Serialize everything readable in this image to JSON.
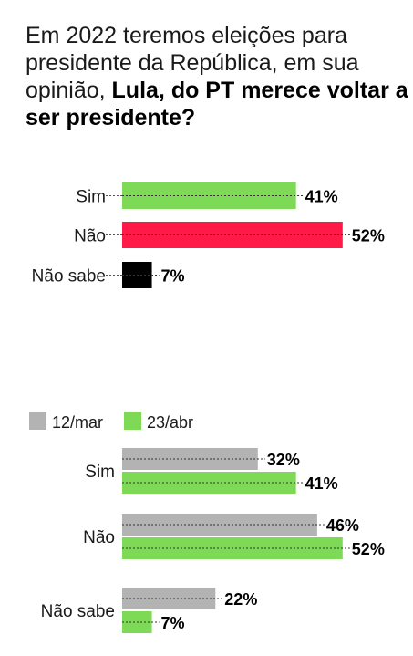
{
  "title": {
    "normal": "Em 2022 teremos eleições para presidente da República, em sua opinião, ",
    "bold": "Lula, do PT merece voltar a ser presidente?"
  },
  "colors": {
    "green": "#7ed957",
    "red": "#ff1a47",
    "black": "#000000",
    "gray": "#b3b3b3"
  },
  "chart_data": [
    {
      "type": "bar",
      "orientation": "horizontal",
      "categories": [
        "Sim",
        "Não",
        "Não sabe"
      ],
      "values": [
        41,
        52,
        7
      ],
      "value_labels": [
        "41%",
        "52%",
        "7%"
      ],
      "bar_colors": [
        "#7ed957",
        "#ff1a47",
        "#000000"
      ],
      "xlim": [
        0,
        100
      ]
    },
    {
      "type": "bar",
      "orientation": "horizontal",
      "categories": [
        "Sim",
        "Não",
        "Não sabe"
      ],
      "legend_position": "top-left",
      "series": [
        {
          "name": "12/mar",
          "color": "#b3b3b3",
          "values": [
            32,
            46,
            22
          ],
          "value_labels": [
            "32%",
            "46%",
            "22%"
          ]
        },
        {
          "name": "23/abr",
          "color": "#7ed957",
          "values": [
            41,
            52,
            7
          ],
          "value_labels": [
            "41%",
            "52%",
            "7%"
          ]
        }
      ],
      "xlim": [
        0,
        100
      ]
    }
  ]
}
